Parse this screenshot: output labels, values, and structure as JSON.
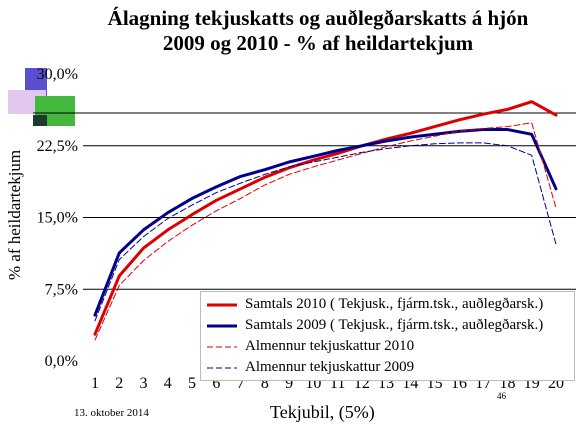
{
  "title_line1": "Álagning tekjuskatts og auðlegðarskatts á hjón",
  "title_line2": "2009 og 2010 - % af heildartekjum",
  "footer_date": "13. oktober 2014",
  "page_number": "46",
  "colors": {
    "red": "#dd0000",
    "navy": "#00008b",
    "grid": "#000000"
  },
  "chart_data": {
    "type": "line",
    "title": "Álagning tekjuskatts og auðlegðarskatts á hjón 2009 og 2010 - % af heildartekjum",
    "xlabel": "Tekjubil, (5%)",
    "ylabel": "% af heildartekjum",
    "ylim": [
      0,
      30
    ],
    "yticks": [
      "0,0%",
      "7,5%",
      "15,0%",
      "22,5%",
      "30,0%"
    ],
    "ytick_values": [
      0,
      7.5,
      15,
      22.5,
      30
    ],
    "x": [
      1,
      2,
      3,
      4,
      5,
      6,
      7,
      8,
      9,
      10,
      11,
      12,
      13,
      14,
      15,
      16,
      17,
      18,
      19,
      20
    ],
    "grid": "horizontal",
    "legend_position": "bottom-right",
    "series": [
      {
        "name": "Samtals 2010 ( Tekjusk., fjárm.tsk., auðlegðarsk.)",
        "color": "#dd0000",
        "style": "solid",
        "width": 3,
        "values": [
          2.8,
          8.9,
          11.8,
          13.7,
          15.3,
          16.8,
          18.0,
          19.2,
          20.2,
          21.0,
          21.7,
          22.5,
          23.2,
          23.8,
          24.5,
          25.2,
          25.8,
          26.3,
          27.1,
          25.7
        ]
      },
      {
        "name": "Samtals 2009 ( Tekjusk., fjárm.tsk., auðlegðarsk.)",
        "color": "#00008b",
        "style": "solid",
        "width": 3,
        "values": [
          4.8,
          11.3,
          13.7,
          15.5,
          17.0,
          18.2,
          19.3,
          20.0,
          20.8,
          21.4,
          22.0,
          22.5,
          23.0,
          23.4,
          23.7,
          24.0,
          24.2,
          24.2,
          23.7,
          18.0
        ]
      },
      {
        "name": "Almennur tekjuskattur 2010",
        "color": "#dd0000",
        "style": "dashed",
        "width": 1,
        "values": [
          2.2,
          7.9,
          10.5,
          12.5,
          14.2,
          15.7,
          17.0,
          18.4,
          19.5,
          20.3,
          21.0,
          21.7,
          22.4,
          23.0,
          23.5,
          24.0,
          24.3,
          24.5,
          24.9,
          16.0
        ]
      },
      {
        "name": "Almennur tekjuskattur 2009",
        "color": "#00008b",
        "style": "dashed",
        "width": 1,
        "values": [
          4.2,
          10.6,
          13.0,
          14.9,
          16.3,
          17.6,
          18.6,
          19.5,
          20.3,
          20.8,
          21.3,
          21.8,
          22.2,
          22.5,
          22.7,
          22.8,
          22.8,
          22.5,
          21.5,
          12.2
        ]
      }
    ]
  }
}
